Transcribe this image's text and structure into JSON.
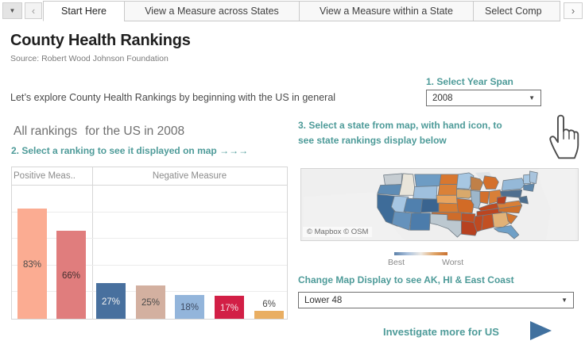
{
  "tab_bar": {
    "menu_icon": "▼",
    "prev_icon": "‹",
    "next_icon": "›",
    "tabs": [
      {
        "label": "Start Here",
        "active": true
      },
      {
        "label": "View a Measure across States",
        "active": false
      },
      {
        "label": "View a Measure within a State",
        "active": false
      },
      {
        "label": "Select Comp",
        "active": false,
        "truncated": true
      }
    ]
  },
  "header": {
    "title": "County Health Rankings",
    "source": "Source: Robert Wood Johnson Foundation"
  },
  "intro": {
    "text": "Let’s explore County Health Rankings by beginning with the US in general",
    "year_label": "1. Select Year Span",
    "year_value": "2008"
  },
  "instructions": {
    "step2": "2. Select a ranking to see it displayed on map  →→→",
    "step3_line1": "3. Select a state from map, with hand icon, to",
    "step3_line2": "see state rankings display below"
  },
  "chart_data": {
    "type": "bar",
    "title_part1": "All rankings",
    "title_part2": "for the US in 2008",
    "value_format": "percent",
    "ylim": [
      0,
      100
    ],
    "grid_step": 20,
    "groups": [
      {
        "header": "Positive Meas..",
        "bars": [
          {
            "label": "83%",
            "value": 83,
            "color": "#FBAC92",
            "label_color": "#4a4a4a"
          },
          {
            "label": "66%",
            "value": 66,
            "color": "#E07D7D",
            "label_color": "#432f2f"
          }
        ]
      },
      {
        "header": "Negative Measure",
        "bars": [
          {
            "label": "27%",
            "value": 27,
            "color": "#48709E",
            "label_color": "#f2f2f2"
          },
          {
            "label": "25%",
            "value": 25,
            "color": "#D3B0A0",
            "label_color": "#4a4a4a"
          },
          {
            "label": "18%",
            "value": 18,
            "color": "#93B5DB",
            "label_color": "#3f4c63"
          },
          {
            "label": "17%",
            "value": 17,
            "color": "#D21F46",
            "label_color": "#f6dfe4"
          },
          {
            "label": "6%",
            "value": 6,
            "color": "#E9AE62",
            "label_color": "#4a4a4a",
            "label_outside": true
          }
        ]
      }
    ]
  },
  "map": {
    "attribution": "© Mapbox © OSM",
    "legend": {
      "best": "Best",
      "worst": "Worst",
      "gradient": [
        "#5C81A9",
        "#A9C0DC",
        "#EDE9E3",
        "#DFA568",
        "#C9702F"
      ]
    },
    "display_label": "Change Map Display to see AK, HI &  East Coast",
    "display_value": "Lower 48",
    "states": [
      {
        "id": "WA",
        "name": "Washington",
        "color": "#C6CDD2"
      },
      {
        "id": "OR",
        "name": "Oregon",
        "color": "#5E8CB5"
      },
      {
        "id": "CA",
        "name": "California",
        "color": "#3E6C99"
      },
      {
        "id": "NV",
        "name": "Nevada",
        "color": "#A6C6E3"
      },
      {
        "id": "ID",
        "name": "Idaho",
        "color": "#E9E5DA"
      },
      {
        "id": "MT",
        "name": "Montana",
        "color": "#6E9CC4"
      },
      {
        "id": "WY",
        "name": "Wyoming",
        "color": "#9FC0DE"
      },
      {
        "id": "UT",
        "name": "Utah",
        "color": "#5080AE"
      },
      {
        "id": "CO",
        "name": "Colorado",
        "color": "#3A6490"
      },
      {
        "id": "AZ",
        "name": "Arizona",
        "color": "#6592BC"
      },
      {
        "id": "NM",
        "name": "New Mexico",
        "color": "#4C7CAB"
      },
      {
        "id": "ND",
        "name": "North Dakota",
        "color": "#D8772F"
      },
      {
        "id": "SD",
        "name": "South Dakota",
        "color": "#DA8138"
      },
      {
        "id": "NE",
        "name": "Nebraska",
        "color": "#E8A45F"
      },
      {
        "id": "KS",
        "name": "Kansas",
        "color": "#D87C31"
      },
      {
        "id": "OK",
        "name": "Oklahoma",
        "color": "#CE6C2A"
      },
      {
        "id": "TX",
        "name": "Texas",
        "color": "#BCC8D0"
      },
      {
        "id": "MN",
        "name": "Minnesota",
        "color": "#A7C7E2"
      },
      {
        "id": "IA",
        "name": "Iowa",
        "color": "#D8A96B"
      },
      {
        "id": "WI",
        "name": "Wisconsin",
        "color": "#C08048"
      },
      {
        "id": "MI",
        "name": "Michigan",
        "color": "#D4702B"
      },
      {
        "id": "IL",
        "name": "Illinois",
        "color": "#9DB6CA"
      },
      {
        "id": "IN",
        "name": "Indiana",
        "color": "#D3702C"
      },
      {
        "id": "OH",
        "name": "Ohio",
        "color": "#D87F37"
      },
      {
        "id": "MO",
        "name": "Missouri",
        "color": "#D26B26"
      },
      {
        "id": "KY",
        "name": "Kentucky",
        "color": "#BE4A20"
      },
      {
        "id": "TN",
        "name": "Tennessee",
        "color": "#BB4520"
      },
      {
        "id": "AR",
        "name": "Arkansas",
        "color": "#C25022"
      },
      {
        "id": "LA",
        "name": "Louisiana",
        "color": "#B74120"
      },
      {
        "id": "MS",
        "name": "Mississippi",
        "color": "#BE4A21"
      },
      {
        "id": "AL",
        "name": "Alabama",
        "color": "#C25022"
      },
      {
        "id": "GA",
        "name": "Georgia",
        "color": "#E2B277"
      },
      {
        "id": "FL",
        "name": "Florida",
        "color": "#6FA0C7"
      },
      {
        "id": "SC",
        "name": "South Carolina",
        "color": "#D3762F"
      },
      {
        "id": "NC",
        "name": "North Carolina",
        "color": "#CE702B"
      },
      {
        "id": "VA",
        "name": "Virginia",
        "color": "#D87F37"
      },
      {
        "id": "WV",
        "name": "West Virginia",
        "color": "#B74120"
      },
      {
        "id": "PA",
        "name": "Pennsylvania",
        "color": "#4F6F8F"
      },
      {
        "id": "NY",
        "name": "New York",
        "color": "#95B9D8"
      },
      {
        "id": "NJ",
        "name": "New Jersey / Maryland / Delaware",
        "color": "#4C6E8E"
      },
      {
        "id": "VT",
        "name": "Vermont / New Hampshire",
        "color": "#A7C7E2"
      },
      {
        "id": "ME",
        "name": "Maine",
        "color": "#A9C4DD"
      },
      {
        "id": "MA",
        "name": "Massachusetts / Connecticut / Rhode Island",
        "color": "#5E87AB"
      }
    ]
  },
  "footer": {
    "investigate": "Investigate more for US"
  },
  "colors": {
    "accent_teal": "#4E9B99",
    "link_blue": "#41719F"
  }
}
